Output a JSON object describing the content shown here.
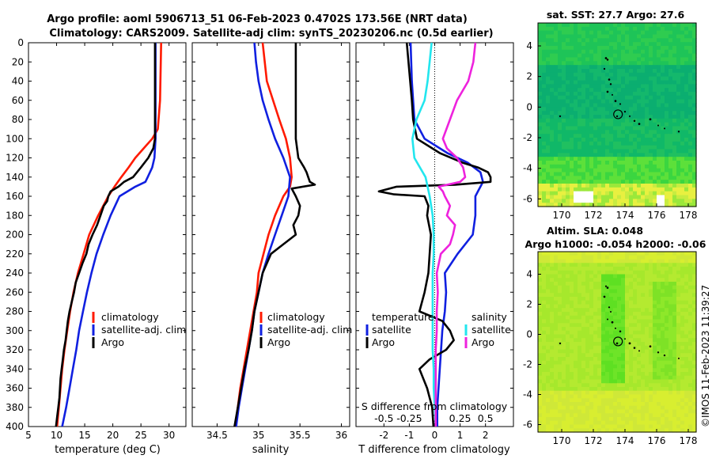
{
  "title_line1": "Argo profile: aoml 5906713_51 06-Feb-2023 0.4702S 173.56E (NRT data)",
  "title_line2": "Climatology: CARS2009. Satellite-adj clim: synTS_20230206.nc (0.5d earlier)",
  "stamp": "©IMOS 11-Feb-2023 11:39:27",
  "colors": {
    "climatology": "#ff1a00",
    "satellite": "#1020e0",
    "argo": "#000000",
    "salinity_sat": "#22e6ee",
    "salinity_argo": "#ee22dd"
  },
  "depth_ticks": [
    "0",
    "20",
    "40",
    "60",
    "80",
    "100",
    "120",
    "140",
    "160",
    "180",
    "200",
    "220",
    "240",
    "260",
    "280",
    "300",
    "320",
    "340",
    "360",
    "380",
    "400"
  ],
  "panel_temp": {
    "xticks": [
      "5",
      "10",
      "15",
      "20",
      "25",
      "30"
    ],
    "xlabel": "temperature (deg C)",
    "legend": [
      "climatology",
      "satellite-adj. clim",
      "Argo"
    ]
  },
  "panel_sal": {
    "xticks": [
      "34.5",
      "35",
      "35.5",
      "36"
    ],
    "xlabel": "salinity",
    "legend": [
      "climatology",
      "satellite-adj. clim",
      "Argo"
    ]
  },
  "panel_diff": {
    "xticks": [
      "-2",
      "-1",
      "0",
      "1",
      "2"
    ],
    "xlabel": "T difference from climatology",
    "s_label": "S difference from climatology",
    "s_ticks": [
      "-0.5",
      "-0.25",
      "0",
      "0.25",
      "0.5"
    ],
    "legend_temp_title": "temperature",
    "legend_sal_title": "salinity",
    "legend_sat": "satellite",
    "legend_argo": "Argo"
  },
  "map_sst": {
    "title": "sat. SST: 27.7 Argo: 27.6",
    "xticks": [
      "170",
      "172",
      "174",
      "176",
      "178"
    ],
    "yticks": [
      "4",
      "2",
      "0",
      "-2",
      "-4",
      "-6"
    ]
  },
  "map_sla": {
    "title1": "Altim. SLA: 0.048",
    "title2": "Argo h1000: -0.054 h2000: -0.06",
    "xticks": [
      "170",
      "172",
      "174",
      "176",
      "178"
    ],
    "yticks": [
      "4",
      "2",
      "0",
      "-2",
      "-4",
      "-6"
    ]
  },
  "chart_data": [
    {
      "type": "line",
      "title": "temperature profile",
      "xlabel": "temperature (deg C)",
      "ylabel": "depth",
      "xlim": [
        5,
        33
      ],
      "ylim": [
        400,
        0
      ],
      "series": [
        {
          "name": "climatology",
          "depth": [
            0,
            60,
            90,
            100,
            110,
            120,
            130,
            140,
            150,
            160,
            170,
            180,
            200,
            220,
            240,
            260,
            280,
            300,
            320,
            340,
            360,
            380,
            400
          ],
          "values": [
            28.6,
            28.4,
            28.0,
            27.0,
            25.5,
            24.0,
            22.8,
            21.5,
            20.3,
            19.2,
            18.3,
            17.4,
            15.8,
            14.8,
            13.8,
            13.0,
            12.4,
            11.9,
            11.4,
            11.0,
            10.7,
            10.4,
            10.1
          ]
        },
        {
          "name": "satellite-adj. clim",
          "depth": [
            0,
            100,
            120,
            130,
            140,
            145,
            150,
            160,
            180,
            200,
            220,
            240,
            260,
            280,
            300,
            320,
            340,
            360,
            380,
            400
          ],
          "values": [
            27.6,
            27.6,
            27.4,
            27.0,
            26.2,
            25.8,
            24.0,
            21.2,
            19.6,
            18.3,
            17.1,
            16.2,
            15.4,
            14.7,
            14.0,
            13.5,
            12.9,
            12.3,
            11.7,
            11.0
          ]
        },
        {
          "name": "Argo",
          "depth": [
            0,
            100,
            110,
            120,
            130,
            140,
            145,
            150,
            155,
            160,
            165,
            170,
            180,
            190,
            200,
            210,
            220,
            230,
            240,
            250,
            260,
            270,
            280,
            290,
            300,
            310,
            320,
            330,
            340,
            350,
            360,
            370,
            380,
            390,
            400
          ],
          "values": [
            27.5,
            27.5,
            27.2,
            26.3,
            25.0,
            23.6,
            22.0,
            21.0,
            19.6,
            19.2,
            19.0,
            18.4,
            17.8,
            17.2,
            16.4,
            15.7,
            15.3,
            14.6,
            14.0,
            13.4,
            13.1,
            12.7,
            12.3,
            12.0,
            11.8,
            11.6,
            11.3,
            11.1,
            10.9,
            10.7,
            10.6,
            10.5,
            10.3,
            10.1,
            9.9
          ]
        }
      ]
    },
    {
      "type": "line",
      "title": "salinity profile",
      "xlabel": "salinity",
      "ylabel": "depth",
      "xlim": [
        34.2,
        36.1
      ],
      "ylim": [
        400,
        0
      ],
      "series": [
        {
          "name": "climatology",
          "depth": [
            0,
            40,
            80,
            100,
            120,
            140,
            150,
            160,
            180,
            200,
            220,
            240,
            260,
            280,
            300,
            320,
            340,
            360,
            380,
            400
          ],
          "values": [
            35.05,
            35.1,
            35.25,
            35.33,
            35.38,
            35.4,
            35.38,
            35.3,
            35.2,
            35.12,
            35.06,
            35.0,
            34.98,
            34.94,
            34.9,
            34.86,
            34.82,
            34.78,
            34.75,
            34.72
          ]
        },
        {
          "name": "satellite-adj. clim",
          "depth": [
            0,
            20,
            40,
            60,
            80,
            100,
            120,
            140,
            160,
            180,
            200,
            220,
            240,
            260,
            280,
            300,
            320,
            340,
            360,
            380,
            400
          ],
          "values": [
            34.95,
            34.97,
            35.0,
            35.05,
            35.12,
            35.2,
            35.3,
            35.38,
            35.36,
            35.28,
            35.2,
            35.12,
            35.05,
            35.0,
            34.95,
            34.92,
            34.88,
            34.84,
            34.8,
            34.76,
            34.73
          ]
        },
        {
          "name": "Argo",
          "depth": [
            0,
            100,
            120,
            130,
            135,
            140,
            145,
            148,
            152,
            160,
            170,
            180,
            190,
            200,
            210,
            220,
            240,
            260,
            280,
            300,
            320,
            340,
            360,
            380,
            400
          ],
          "values": [
            35.45,
            35.45,
            35.48,
            35.55,
            35.58,
            35.6,
            35.62,
            35.68,
            35.4,
            35.45,
            35.5,
            35.48,
            35.42,
            35.45,
            35.3,
            35.15,
            35.05,
            35.0,
            34.95,
            34.92,
            34.88,
            34.83,
            34.79,
            34.75,
            34.71
          ]
        }
      ]
    },
    {
      "type": "line",
      "title": "difference from climatology",
      "xlabel": "T difference from climatology",
      "ylabel": "depth",
      "xlim": [
        -3.1,
        3.1
      ],
      "ylim": [
        400,
        0
      ],
      "secondary_x": {
        "label": "S difference from climatology",
        "ticks": [
          -0.5,
          -0.25,
          0,
          0.25,
          0.5
        ]
      },
      "series": [
        {
          "name": "temperature satellite",
          "depth": [
            0,
            40,
            60,
            80,
            100,
            115,
            125,
            135,
            145,
            150,
            155,
            160,
            180,
            200,
            220,
            240,
            260,
            280,
            300,
            320,
            340,
            360,
            380,
            400
          ],
          "values": [
            -0.95,
            -0.9,
            -0.85,
            -0.8,
            -0.4,
            0.5,
            1.3,
            1.8,
            1.9,
            1.8,
            1.7,
            1.6,
            1.6,
            1.5,
            0.9,
            0.4,
            0.45,
            0.4,
            0.3,
            0.25,
            0.2,
            0.15,
            0.1,
            0.1
          ]
        },
        {
          "name": "temperature Argo",
          "depth": [
            0,
            60,
            80,
            100,
            115,
            125,
            130,
            135,
            140,
            145,
            148,
            150,
            155,
            158,
            160,
            170,
            180,
            200,
            220,
            240,
            260,
            280,
            290,
            300,
            310,
            320,
            330,
            340,
            360,
            380,
            400
          ],
          "values": [
            -1.1,
            -0.9,
            -0.85,
            -0.7,
            0.2,
            1.1,
            1.7,
            2.1,
            2.2,
            2.2,
            0.8,
            -1.5,
            -2.2,
            -1.6,
            -0.4,
            -0.25,
            -0.3,
            -0.15,
            -0.2,
            -0.25,
            -0.4,
            -0.6,
            0.3,
            0.6,
            0.75,
            0.45,
            -0.2,
            -0.6,
            -0.3,
            -0.1,
            -0.05
          ]
        },
        {
          "name": "salinity satellite",
          "depth": [
            0,
            20,
            40,
            60,
            80,
            100,
            120,
            140,
            160,
            180,
            200,
            220,
            240,
            260,
            280,
            300,
            320,
            340,
            360,
            380,
            400
          ],
          "values": [
            -0.03,
            -0.05,
            -0.07,
            -0.1,
            -0.18,
            -0.22,
            -0.2,
            -0.09,
            -0.05,
            -0.02,
            -0.01,
            -0.01,
            -0.02,
            -0.02,
            -0.02,
            -0.02,
            -0.02,
            -0.01,
            -0.01,
            0.0,
            0.01
          ]
        },
        {
          "name": "salinity Argo",
          "depth": [
            0,
            20,
            40,
            60,
            80,
            100,
            110,
            120,
            130,
            140,
            145,
            150,
            155,
            160,
            170,
            180,
            190,
            200,
            210,
            220,
            240,
            260,
            280,
            300,
            320,
            340,
            360,
            380,
            400
          ],
          "values": [
            0.4,
            0.38,
            0.33,
            0.22,
            0.15,
            0.08,
            0.12,
            0.22,
            0.28,
            0.3,
            0.25,
            0.04,
            0.08,
            0.1,
            0.15,
            0.12,
            0.2,
            0.18,
            0.15,
            0.06,
            0.02,
            0.03,
            0.02,
            0.02,
            0.01,
            0.01,
            0.01,
            0.01,
            0.01
          ]
        }
      ]
    },
    {
      "type": "heatmap",
      "title": "sat. SST: 27.7 Argo: 27.6",
      "xlim": [
        168.5,
        178.5
      ],
      "ylim": [
        -6.5,
        5.5
      ],
      "xticks": [
        170,
        172,
        174,
        176,
        178
      ],
      "yticks": [
        4,
        2,
        0,
        -2,
        -4,
        -6
      ],
      "marker": {
        "lon": 173.56,
        "lat": -0.47
      }
    },
    {
      "type": "heatmap",
      "title": "Altim. SLA: 0.048 / Argo h1000: -0.054 h2000: -0.06",
      "xlim": [
        168.5,
        178.5
      ],
      "ylim": [
        -6.5,
        5.5
      ],
      "xticks": [
        170,
        172,
        174,
        176,
        178
      ],
      "yticks": [
        4,
        2,
        0,
        -2,
        -4,
        -6
      ],
      "marker": {
        "lon": 173.56,
        "lat": -0.47
      }
    }
  ]
}
